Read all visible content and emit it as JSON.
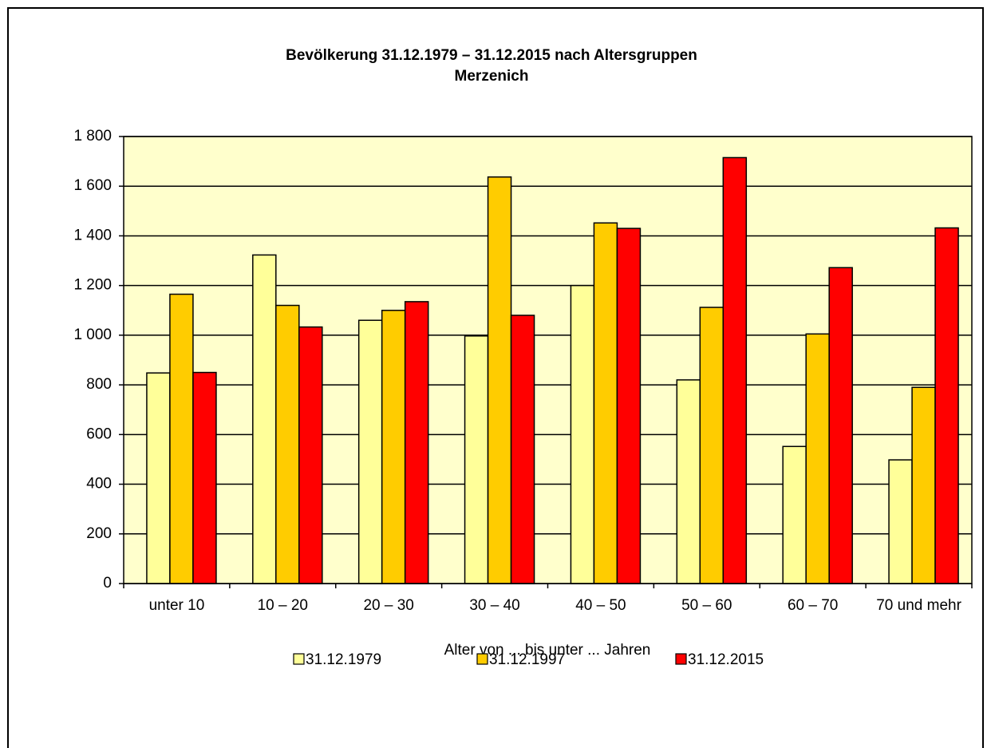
{
  "chart_data": {
    "type": "bar",
    "title": "Bevölkerung 31.12.1979 – 31.12.2015 nach Altersgruppen",
    "subtitle": "Merzenich",
    "x_label": "Alter von ... bis unter ... Jahren",
    "categories": [
      "unter 10",
      "10 – 20",
      "20 – 30",
      "30 – 40",
      "40 – 50",
      "50 – 60",
      "60 – 70",
      "70 und mehr"
    ],
    "series": [
      {
        "name": "31.12.1979",
        "color": "#FFFF99",
        "values": [
          848,
          1323,
          1060,
          997,
          1200,
          820,
          552,
          498
        ]
      },
      {
        "name": "31.12.1997",
        "color": "#FFCC00",
        "values": [
          1165,
          1120,
          1100,
          1637,
          1452,
          1112,
          1005,
          790
        ]
      },
      {
        "name": "31.12.2015",
        "color": "#FF0000",
        "values": [
          850,
          1033,
          1135,
          1080,
          1430,
          1715,
          1272,
          1432
        ]
      }
    ],
    "ylim": [
      0,
      1800
    ],
    "yticks": [
      0,
      200,
      400,
      600,
      800,
      {
        "value": 1000,
        "label": "1 000"
      },
      {
        "value": 1200,
        "label": "1 200"
      },
      {
        "value": 1400,
        "label": "1 400"
      },
      {
        "value": 1600,
        "label": "1 600"
      },
      {
        "value": 1800,
        "label": "1 800"
      }
    ],
    "grid": true,
    "plot_background": "#FFFFCC",
    "legend": "bottom"
  }
}
